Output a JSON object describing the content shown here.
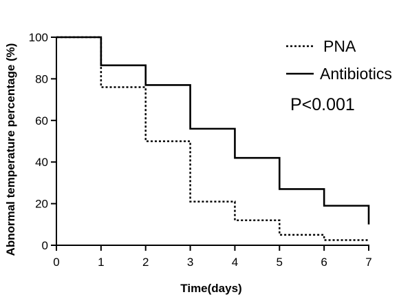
{
  "chart_data": {
    "type": "line",
    "subtype": "step",
    "title": "",
    "xlabel": "Time(days)",
    "ylabel": "Abnormal temperature  percentage (%)",
    "xlim": [
      0,
      7
    ],
    "ylim": [
      0,
      100
    ],
    "xticks": [
      "0",
      "1",
      "2",
      "3",
      "4",
      "5",
      "6",
      "7"
    ],
    "yticks": [
      "0",
      "20",
      "40",
      "60",
      "80",
      "100"
    ],
    "grid": false,
    "legend_position": "top-right",
    "annotation": "P<0.001",
    "series": [
      {
        "name": "PNA",
        "style": "dotted",
        "color": "#000000",
        "x": [
          0,
          1,
          2,
          3,
          4,
          5,
          6,
          7
        ],
        "y": [
          100,
          76,
          50,
          21,
          12,
          5,
          2.5,
          2
        ]
      },
      {
        "name": "Antibiotics",
        "style": "solid",
        "color": "#000000",
        "x": [
          0,
          1,
          2,
          3,
          4,
          5,
          6,
          7
        ],
        "y": [
          100,
          86.5,
          77,
          56,
          42,
          27,
          19,
          10
        ]
      }
    ]
  }
}
